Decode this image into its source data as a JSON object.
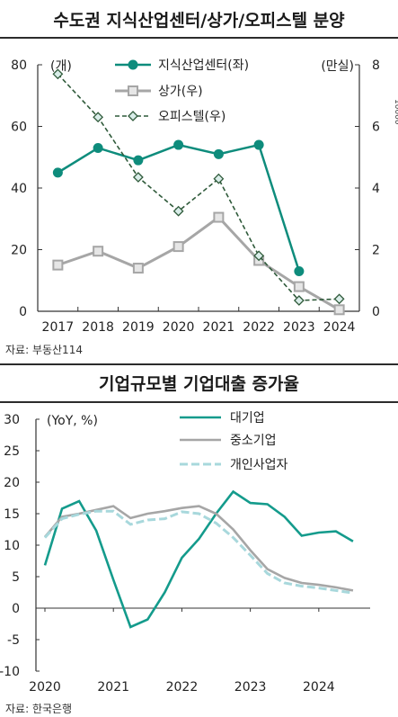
{
  "charts": {
    "top": {
      "title": "수도권 지식산업센터/상가/오피스텔 분양",
      "source": "자료: 부동산114",
      "left_unit": "(개)",
      "right_unit": "(만실)",
      "right_edge_text": "10000",
      "colors": {
        "knowledge": "#0e8c7c",
        "retail": "#a6a6a6",
        "officetel": "#2f5a3a"
      }
    },
    "bottom": {
      "title": "기업규모별 기업대출 증가율",
      "source": "자료: 한국은행",
      "unit": "(YoY, %)",
      "colors": {
        "large": "#149b8c",
        "sme": "#a6a6a6",
        "sole": "#a8d8dc"
      }
    }
  },
  "chart_data": [
    {
      "type": "line",
      "title": "수도권 지식산업센터/상가/오피스텔 분양",
      "categories": [
        "2017",
        "2018",
        "2019",
        "2020",
        "2021",
        "2022",
        "2023",
        "2024"
      ],
      "ylim_left": [
        0,
        80
      ],
      "yticks_left": [
        "0",
        "20",
        "40",
        "60",
        "80"
      ],
      "ylim_right": [
        0,
        8
      ],
      "yticks_right": [
        "0",
        "2",
        "4",
        "6",
        "8"
      ],
      "legend_position": "top",
      "series": [
        {
          "name": "지식산업센터(좌)",
          "axis": "left",
          "style": "solid-circle",
          "values": [
            45,
            53,
            49,
            54,
            51,
            54,
            13,
            null
          ]
        },
        {
          "name": "상가(우)",
          "axis": "right",
          "style": "solid-square",
          "values": [
            1.5,
            1.95,
            1.4,
            2.1,
            3.05,
            1.65,
            0.8,
            0.05
          ]
        },
        {
          "name": "오피스텔(우)",
          "axis": "right",
          "style": "dashed-diamond",
          "values": [
            7.7,
            6.3,
            4.35,
            3.25,
            4.3,
            1.8,
            0.35,
            0.4
          ]
        }
      ]
    },
    {
      "type": "line",
      "title": "기업규모별 기업대출 증가율",
      "x_ticks": [
        "2020",
        "2021",
        "2022",
        "2023",
        "2024"
      ],
      "x_range": [
        2020.0,
        2024.75
      ],
      "ylim": [
        -10,
        30
      ],
      "yticks": [
        "30",
        "25",
        "20",
        "15",
        "10",
        "5",
        "0",
        "-5",
        "-10"
      ],
      "legend_position": "top-right",
      "series": [
        {
          "name": "대기업",
          "style": "solid",
          "x": [
            2020.0,
            2020.25,
            2020.5,
            2020.75,
            2021.0,
            2021.25,
            2021.5,
            2021.75,
            2022.0,
            2022.25,
            2022.5,
            2022.75,
            2023.0,
            2023.25,
            2023.5,
            2023.75,
            2024.0,
            2024.25,
            2024.5
          ],
          "values": [
            6.8,
            15.8,
            17,
            12.3,
            4.5,
            -3,
            -1.8,
            2.5,
            8,
            11,
            15,
            18.5,
            16.7,
            16.5,
            14.5,
            11.5,
            12,
            12.2,
            10.6
          ]
        },
        {
          "name": "중소기업",
          "style": "solid",
          "x": [
            2020.0,
            2020.25,
            2020.5,
            2020.75,
            2021.0,
            2021.25,
            2021.5,
            2021.75,
            2022.0,
            2022.25,
            2022.5,
            2022.75,
            2023.0,
            2023.25,
            2023.5,
            2023.75,
            2024.0,
            2024.25,
            2024.5
          ],
          "values": [
            11.3,
            14.5,
            15,
            15.6,
            16.2,
            14.3,
            15,
            15.4,
            15.9,
            16.2,
            15,
            12.5,
            9.2,
            6.2,
            4.8,
            4,
            3.7,
            3.3,
            2.8
          ]
        },
        {
          "name": "개인사업자",
          "style": "dashed",
          "x": [
            2020.0,
            2020.25,
            2020.5,
            2020.75,
            2021.0,
            2021.25,
            2021.5,
            2021.75,
            2022.0,
            2022.25,
            2022.5,
            2022.75,
            2023.0,
            2023.25,
            2023.5,
            2023.75,
            2024.0,
            2024.25,
            2024.5
          ],
          "values": [
            11.2,
            14.2,
            14.9,
            15.4,
            15.4,
            13.3,
            14,
            14.2,
            15.3,
            15,
            13.5,
            11.2,
            8.4,
            5.5,
            4,
            3.5,
            3.2,
            2.8,
            2.4
          ]
        }
      ]
    }
  ]
}
